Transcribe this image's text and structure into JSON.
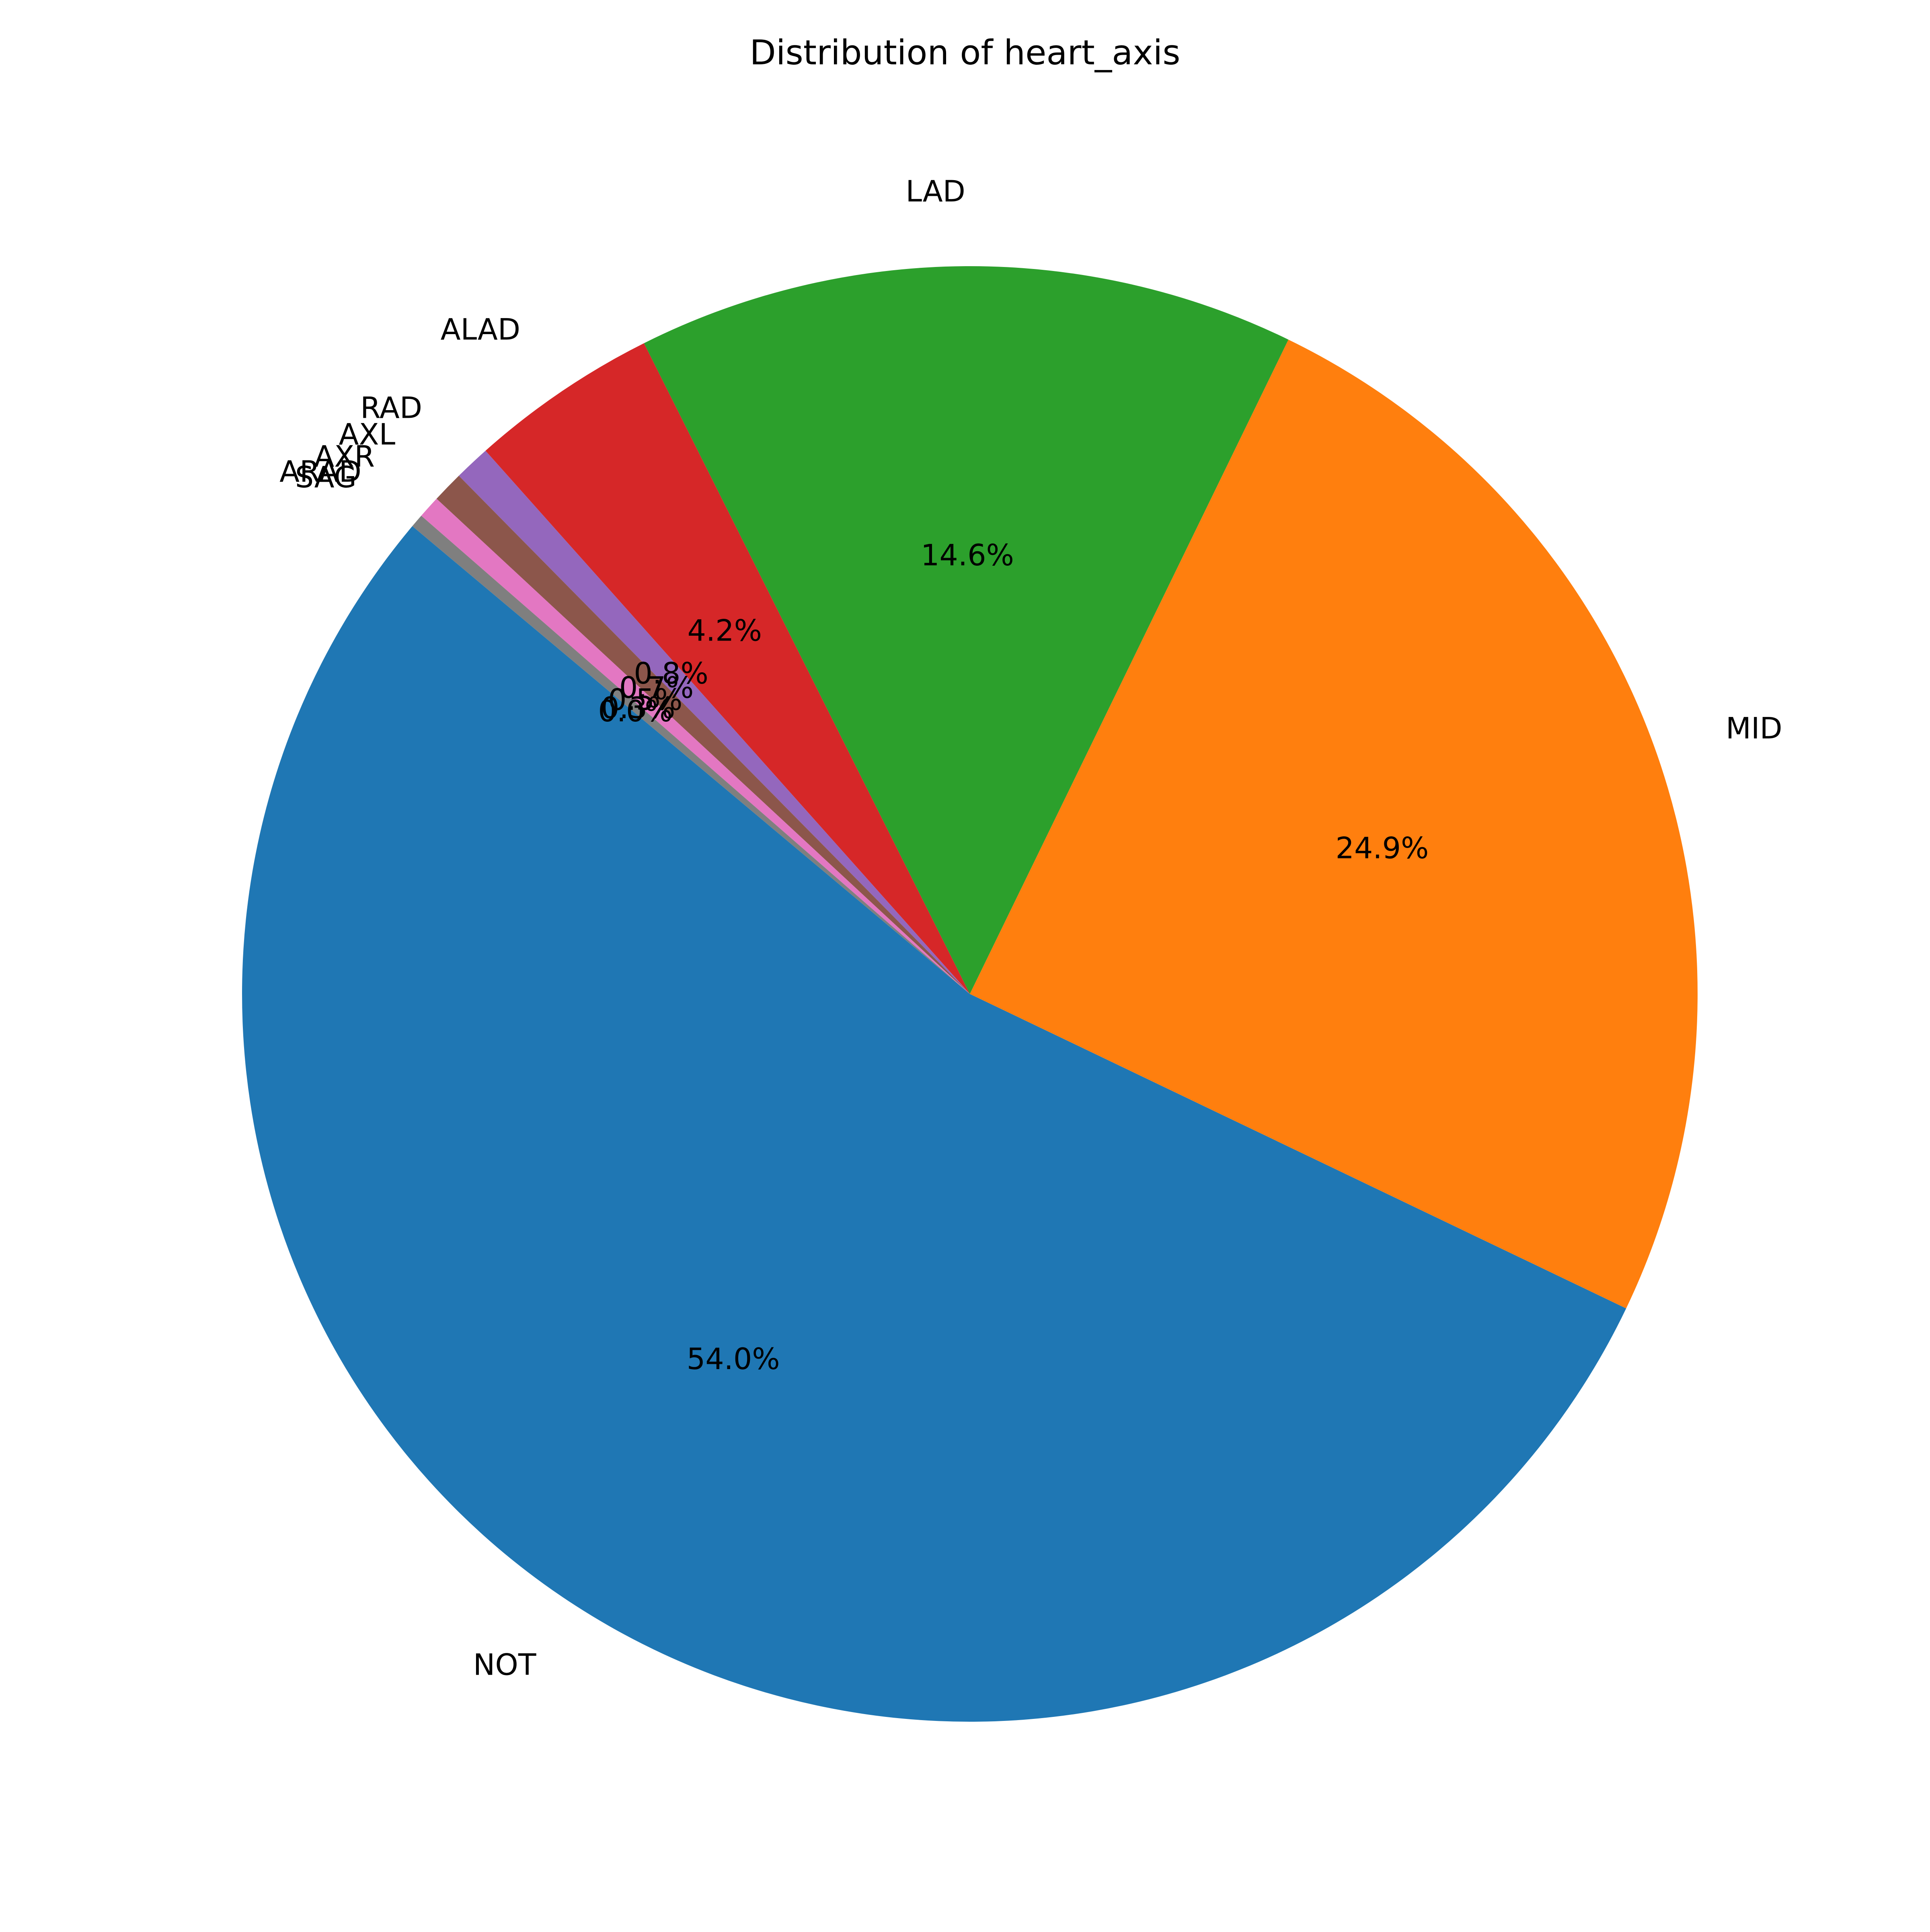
{
  "chart_data": {
    "type": "pie",
    "title": "Distribution of heart_axis",
    "start_angle_deg": 140,
    "direction": "counterclockwise",
    "slices": [
      {
        "label": "NOT",
        "value": 54.0,
        "pct_label": "54.0%",
        "color": "#1f77b4"
      },
      {
        "label": "MID",
        "value": 24.9,
        "pct_label": "24.9%",
        "color": "#ff7f0e"
      },
      {
        "label": "LAD",
        "value": 14.6,
        "pct_label": "14.6%",
        "color": "#2ca02c"
      },
      {
        "label": "ALAD",
        "value": 4.2,
        "pct_label": "4.2%",
        "color": "#d62728"
      },
      {
        "label": "RAD",
        "value": 0.8,
        "pct_label": "0.8%",
        "color": "#9467bd"
      },
      {
        "label": "AXL",
        "value": 0.7,
        "pct_label": "0.7%",
        "color": "#8c564b"
      },
      {
        "label": "AXR",
        "value": 0.5,
        "pct_label": "0.5%",
        "color": "#e377c2"
      },
      {
        "label": "ARAD",
        "value": 0.3,
        "pct_label": "0.3%",
        "color": "#7f7f7f"
      },
      {
        "label": "SAG",
        "value": 0.0,
        "pct_label": "0.0%",
        "color": "#bcbd22"
      }
    ]
  }
}
